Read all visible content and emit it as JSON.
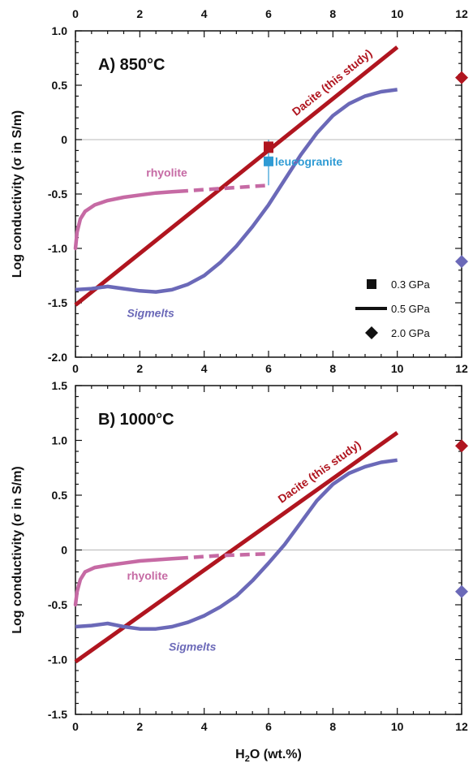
{
  "colors": {
    "dacite": "#b0151f",
    "rhyolite": "#c66aa4",
    "sigmelts": "#6b69b8",
    "leucogranite": "#2f9bd4",
    "zero_line": "#b8b8b8",
    "axis": "#111111"
  },
  "x_axis": {
    "label_main": "H",
    "label_sub": "2",
    "label_rest": "O (wt.%)",
    "ticks": [
      "0",
      "2",
      "4",
      "6",
      "8",
      "10",
      "12"
    ]
  },
  "legend": [
    {
      "symbol": "square",
      "label": "0.3 GPa"
    },
    {
      "symbol": "line",
      "label": "0.5 GPa"
    },
    {
      "symbol": "diamond",
      "label": "2.0 GPa"
    }
  ],
  "chart_data": [
    {
      "type": "line",
      "panel_label": "A) 850°C",
      "ylabel": "Log conductivity (σ in S/m)",
      "xlim": [
        0,
        12
      ],
      "ylim": [
        -2.0,
        1.0
      ],
      "ytick_values": [
        -2.0,
        -1.5,
        -1.0,
        -0.5,
        0,
        0.5,
        1.0
      ],
      "yticks": [
        "-2.0",
        "-1.5",
        "-1.0",
        "-0.5",
        "0",
        "0.5",
        "1.0"
      ],
      "series": [
        {
          "name": "Dacite (this study)",
          "style": "solid",
          "x": [
            0,
            10
          ],
          "y": [
            -1.52,
            0.85
          ]
        },
        {
          "name": "rhyolite",
          "style": "solid+dashed",
          "x": [
            0,
            0.05,
            0.15,
            0.3,
            0.6,
            1.0,
            1.5,
            2.0,
            2.5,
            3.0,
            3.5,
            4.0,
            4.5,
            5.0,
            5.5,
            6.0
          ],
          "y": [
            -1.0,
            -0.85,
            -0.73,
            -0.66,
            -0.6,
            -0.56,
            -0.53,
            -0.51,
            -0.49,
            -0.48,
            -0.47,
            -0.46,
            -0.45,
            -0.44,
            -0.43,
            -0.42
          ],
          "dashed_from_x": 3.2
        },
        {
          "name": "Sigmelts",
          "style": "solid",
          "x": [
            0,
            0.5,
            1.0,
            1.5,
            2.0,
            2.5,
            3.0,
            3.5,
            4.0,
            4.5,
            5.0,
            5.5,
            6.0,
            6.5,
            7.0,
            7.5,
            8.0,
            8.5,
            9.0,
            9.5,
            10.0
          ],
          "y": [
            -1.38,
            -1.37,
            -1.35,
            -1.37,
            -1.39,
            -1.4,
            -1.38,
            -1.33,
            -1.25,
            -1.13,
            -0.98,
            -0.8,
            -0.6,
            -0.37,
            -0.14,
            0.06,
            0.22,
            0.33,
            0.4,
            0.44,
            0.46
          ]
        },
        {
          "name": "leucogranite",
          "style": "marker",
          "x": [
            6.0
          ],
          "y": [
            -0.2
          ],
          "error_y": [
            -0.42,
            0.0
          ]
        },
        {
          "name": "0.3 GPa dacite",
          "style": "marker",
          "x": [
            6.0
          ],
          "y": [
            -0.07
          ]
        }
      ],
      "diamonds": [
        {
          "color": "dacite",
          "x": 12,
          "y": 0.57
        },
        {
          "color": "sigmelts",
          "x": 12,
          "y": -1.12
        }
      ]
    },
    {
      "type": "line",
      "panel_label": "B) 1000°C",
      "ylabel": "Log conductivity (σ in S/m)",
      "xlim": [
        0,
        12
      ],
      "ylim": [
        -1.5,
        1.5
      ],
      "ytick_values": [
        -1.5,
        -1.0,
        -0.5,
        0,
        0.5,
        1.0,
        1.5
      ],
      "yticks": [
        "-1.5",
        "-1.0",
        "-0.5",
        "0",
        "0.5",
        "1.0",
        "1.5"
      ],
      "series": [
        {
          "name": "Dacite (this study)",
          "style": "solid",
          "x": [
            0,
            10
          ],
          "y": [
            -1.02,
            1.07
          ]
        },
        {
          "name": "rhyolite",
          "style": "solid+dashed",
          "x": [
            0,
            0.05,
            0.15,
            0.3,
            0.6,
            1.0,
            1.5,
            2.0,
            2.5,
            3.0,
            3.5,
            4.0,
            4.5,
            5.0,
            5.5,
            6.0
          ],
          "y": [
            -0.5,
            -0.38,
            -0.27,
            -0.2,
            -0.16,
            -0.14,
            -0.12,
            -0.1,
            -0.09,
            -0.08,
            -0.07,
            -0.06,
            -0.05,
            -0.045,
            -0.04,
            -0.035
          ],
          "dashed_from_x": 3.2
        },
        {
          "name": "Sigmelts",
          "style": "solid",
          "x": [
            0,
            0.5,
            1.0,
            1.5,
            2.0,
            2.5,
            3.0,
            3.5,
            4.0,
            4.5,
            5.0,
            5.5,
            6.0,
            6.5,
            7.0,
            7.5,
            8.0,
            8.5,
            9.0,
            9.5,
            10.0
          ],
          "y": [
            -0.7,
            -0.69,
            -0.67,
            -0.7,
            -0.72,
            -0.72,
            -0.7,
            -0.66,
            -0.6,
            -0.52,
            -0.42,
            -0.28,
            -0.12,
            0.05,
            0.25,
            0.45,
            0.6,
            0.7,
            0.76,
            0.8,
            0.82
          ]
        }
      ],
      "diamonds": [
        {
          "color": "dacite",
          "x": 12,
          "y": 0.95
        },
        {
          "color": "sigmelts",
          "x": 12,
          "y": -0.38
        }
      ]
    }
  ]
}
